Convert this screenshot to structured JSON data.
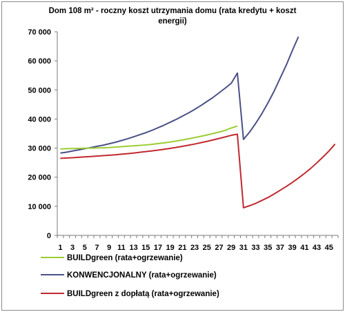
{
  "chart_data": {
    "type": "line",
    "title_line1": "Dom 108 m² - roczny koszt utrzymania domu (rata kredytu  + koszt",
    "title_line2": "energii)",
    "xlabel": "",
    "ylabel": "",
    "ylim": [
      0,
      70000
    ],
    "yticks": [
      0,
      10000,
      20000,
      30000,
      40000,
      50000,
      60000,
      70000
    ],
    "ytick_labels": [
      "0",
      "10 000",
      "20 000",
      "30 000",
      "40 000",
      "50 000",
      "60 000",
      "70 000"
    ],
    "x": [
      1,
      2,
      3,
      4,
      5,
      6,
      7,
      8,
      9,
      10,
      11,
      12,
      13,
      14,
      15,
      16,
      17,
      18,
      19,
      20,
      21,
      22,
      23,
      24,
      25,
      26,
      27,
      28,
      29,
      30,
      31,
      32,
      33,
      34,
      35,
      36,
      37,
      38,
      39,
      40,
      41,
      42,
      43,
      44,
      45,
      46
    ],
    "xtick_labels": [
      "1",
      "3",
      "5",
      "7",
      "9",
      "11",
      "13",
      "15",
      "17",
      "19",
      "21",
      "23",
      "25",
      "27",
      "29",
      "31",
      "33",
      "35",
      "37",
      "39",
      "41",
      "43",
      "45"
    ],
    "grid": "none",
    "legend_position": "bottom",
    "series": [
      {
        "name": "BUILDgreen  (rata+ogrzewanie)",
        "color": "#9acd32",
        "values": [
          29700,
          29800,
          29850,
          29900,
          29950,
          30000,
          30050,
          30100,
          30200,
          30350,
          30500,
          30650,
          30800,
          30950,
          31100,
          31300,
          31550,
          31800,
          32100,
          32450,
          32800,
          33200,
          33600,
          34050,
          34500,
          35000,
          35500,
          36100,
          36900,
          37600,
          null,
          null,
          null,
          null,
          null,
          null,
          null,
          null,
          null,
          null,
          null,
          null,
          null,
          null,
          null,
          null
        ]
      },
      {
        "name": "KONWENCJONALNY  (rata+ogrzewanie)",
        "color": "#4a4f86",
        "values": [
          28300,
          28600,
          29000,
          29400,
          29800,
          30200,
          30600,
          31000,
          31500,
          32000,
          32600,
          33200,
          33900,
          34600,
          35300,
          36100,
          37000,
          37900,
          38900,
          39900,
          41000,
          42100,
          43300,
          44600,
          46000,
          47400,
          49000,
          50600,
          52300,
          55800,
          33000,
          35500,
          38500,
          41800,
          45500,
          49500,
          54000,
          58500,
          63500,
          68300,
          null,
          null,
          null,
          null,
          null,
          null
        ]
      },
      {
        "name": "BUILDgreen  z dopłatą (rata+ogrzewanie)",
        "color": "#c0282e",
        "values": [
          26500,
          26600,
          26700,
          26850,
          27000,
          27100,
          27250,
          27400,
          27550,
          27700,
          27900,
          28100,
          28300,
          28550,
          28800,
          29050,
          29300,
          29600,
          29900,
          30250,
          30600,
          31000,
          31400,
          31850,
          32300,
          32800,
          33300,
          33850,
          34400,
          34800,
          9500,
          10200,
          11000,
          12000,
          13000,
          14200,
          15500,
          16800,
          18200,
          19700,
          21300,
          23000,
          24900,
          26900,
          29000,
          31400
        ]
      }
    ]
  }
}
